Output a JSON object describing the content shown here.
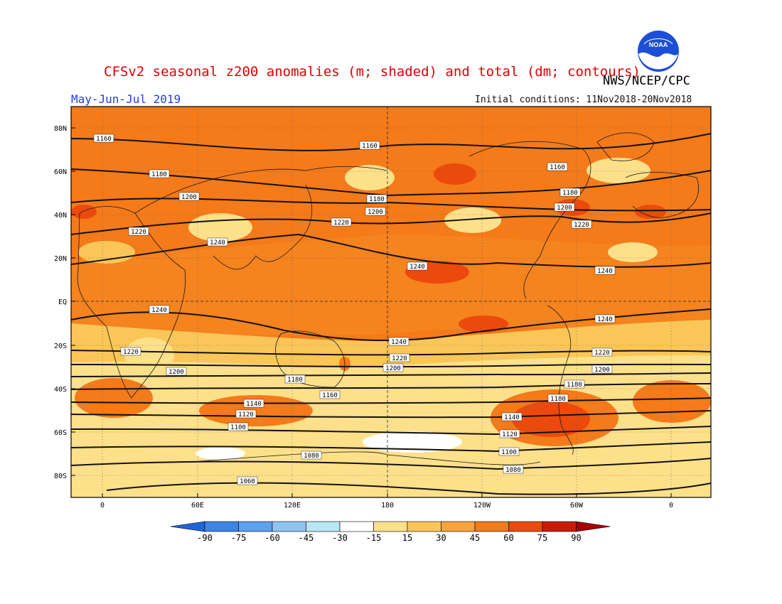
{
  "title": "CFSv2 seasonal z200 anomalies (m; shaded) and total (dm; contours)",
  "agency": "NWS/NCEP/CPC",
  "period": "May-Jun-Jul 2019",
  "initial_conditions": "Initial conditions: 11Nov2018-20Nov2018",
  "logo_text": "NOAA",
  "map": {
    "lat_ticks": [
      "80N",
      "60N",
      "40N",
      "20N",
      "EQ",
      "20S",
      "40S",
      "60S",
      "80S"
    ],
    "lon_ticks": [
      "0",
      "60E",
      "120E",
      "180",
      "120W",
      "60W",
      "0"
    ],
    "contour_labels": [
      "1160",
      "1160",
      "1160",
      "1180",
      "1180",
      "1180",
      "1200",
      "1200",
      "1200",
      "1220",
      "1220",
      "1220",
      "1240",
      "1240",
      "1240",
      "1240",
      "1240",
      "1240",
      "1220",
      "1220",
      "1220",
      "1200",
      "1200",
      "1200",
      "1180",
      "1180",
      "1180",
      "1160",
      "1140",
      "1140",
      "1120",
      "1120",
      "1100",
      "1100",
      "1080",
      "1080",
      "1060"
    ]
  },
  "colorbar": {
    "labels": [
      "-90",
      "-75",
      "-60",
      "-45",
      "-30",
      "-15",
      "15",
      "30",
      "45",
      "60",
      "75",
      "90"
    ],
    "colors": [
      "#1f64d8",
      "#3c84e6",
      "#5da2ee",
      "#8ec4f2",
      "#b8e6f4",
      "#ffffff",
      "#fde08a",
      "#fbc658",
      "#f9a43a",
      "#f47a1a",
      "#ec4a0c",
      "#cc1a08",
      "#a60000"
    ]
  },
  "chart_data": {
    "type": "heatmap",
    "variable": "z200 anomalies (m; shaded) and total (dm; contours)",
    "shade_levels": [
      -90,
      -75,
      -60,
      -45,
      -30,
      -15,
      15,
      30,
      45,
      60,
      75,
      90
    ],
    "contour_values_dm": [
      1060,
      1080,
      1100,
      1120,
      1140,
      1160,
      1180,
      1200,
      1220,
      1240
    ],
    "xaxis": "longitude",
    "yaxis": "latitude"
  }
}
